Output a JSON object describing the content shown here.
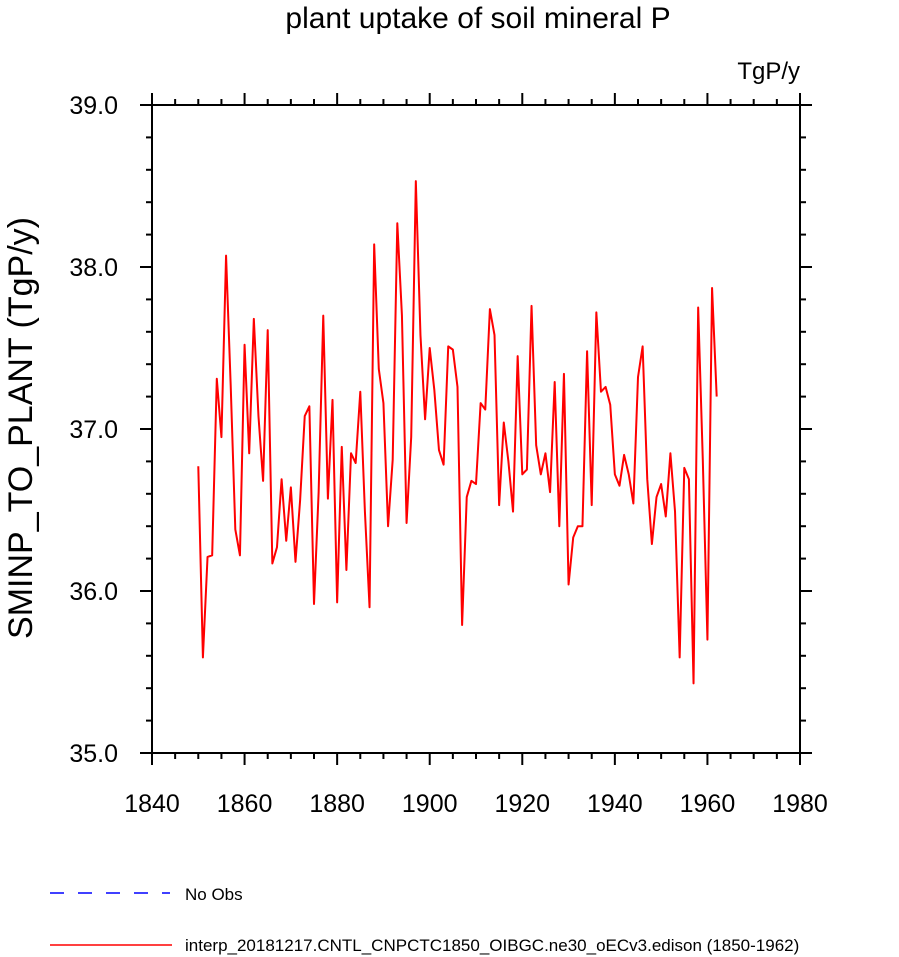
{
  "chart_data": {
    "type": "line",
    "title": "plant uptake of soil mineral P",
    "units": "TgP/y",
    "xlabel": "",
    "ylabel": "SMINP_TO_PLANT  (TgP/y)",
    "xlim": [
      1840,
      1980
    ],
    "ylim": [
      35.0,
      39.0
    ],
    "xticks": [
      1840,
      1860,
      1880,
      1900,
      1920,
      1940,
      1960,
      1980
    ],
    "yticks": [
      "35.0",
      "36.0",
      "37.0",
      "38.0",
      "39.0"
    ],
    "series": [
      {
        "name": "interp_20181217.CNTL_CNPCTC1850_OIBGC.ne30_oECv3.edison (1850-1962)",
        "color": "#ff0000",
        "x_start": 1850,
        "values": [
          36.77,
          35.59,
          36.21,
          36.22,
          37.31,
          36.95,
          38.07,
          37.27,
          36.38,
          36.22,
          37.52,
          36.85,
          37.68,
          37.08,
          36.68,
          37.61,
          36.17,
          36.27,
          36.69,
          36.31,
          36.64,
          36.18,
          36.56,
          37.08,
          37.14,
          35.92,
          36.61,
          37.7,
          36.57,
          37.18,
          35.93,
          36.89,
          36.13,
          36.85,
          36.79,
          37.23,
          36.49,
          35.9,
          38.14,
          37.37,
          37.16,
          36.4,
          36.81,
          38.27,
          37.7,
          36.42,
          36.95,
          38.53,
          37.58,
          37.06,
          37.5,
          37.24,
          36.87,
          36.78,
          37.51,
          37.49,
          37.26,
          35.79,
          36.58,
          36.68,
          36.66,
          37.16,
          37.12,
          37.74,
          37.58,
          36.53,
          37.04,
          36.8,
          36.49,
          37.45,
          36.72,
          36.75,
          37.76,
          36.9,
          36.72,
          36.85,
          36.61,
          37.29,
          36.4,
          37.34,
          36.04,
          36.33,
          36.4,
          36.4,
          37.48,
          36.53,
          37.72,
          37.23,
          37.26,
          37.15,
          36.72,
          36.65,
          36.84,
          36.72,
          36.54,
          37.32,
          37.51,
          36.69,
          36.29,
          36.58,
          36.66,
          36.46,
          36.85,
          36.49,
          35.59,
          36.76,
          36.69,
          35.43,
          37.75,
          36.81,
          35.7,
          37.87,
          37.2
        ]
      },
      {
        "name": "No Obs",
        "color": "#0000ff",
        "values": []
      }
    ],
    "legend": "bottom"
  }
}
